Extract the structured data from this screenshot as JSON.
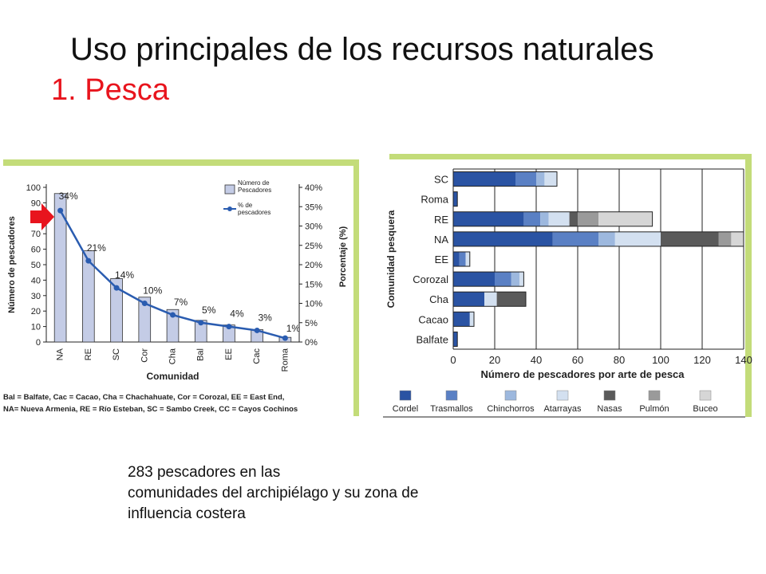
{
  "slide": {
    "title": "Uso principales de los recursos naturales",
    "subtitle": "1. Pesca",
    "caption": [
      "283 pescadores en las",
      "comunidades del archipiélago y su zona de",
      "influencia costera"
    ]
  },
  "colors": {
    "subtitle": "#e8141d",
    "frame": "#c3dc79",
    "arrow": "#e8141d"
  },
  "chart_data": [
    {
      "type": "bar",
      "categories": [
        "NA",
        "RE",
        "SC",
        "Cor",
        "Cha",
        "Bal",
        "EE",
        "Cac",
        "Roma"
      ],
      "series": [
        {
          "name": "Número de Pescadores",
          "values": [
            96,
            59,
            41,
            29,
            21,
            14,
            11,
            8,
            3
          ]
        },
        {
          "name": "% de pescadores",
          "values": [
            34,
            21,
            14,
            10,
            7,
            5,
            4,
            3,
            1
          ],
          "axis": "right",
          "style": "line"
        }
      ],
      "data_labels": [
        "34%",
        "21%",
        "14%",
        "10%",
        "7%",
        "5%",
        "4%",
        "3%",
        "1%"
      ],
      "xlabel": "Comunidad",
      "ylabel": "Número de pescadores",
      "ylabel_right": "Porcentaje (%)",
      "ylim": [
        0,
        100
      ],
      "yticks": [
        0,
        10,
        20,
        30,
        40,
        50,
        60,
        70,
        80,
        90,
        100
      ],
      "ylim_right": [
        0,
        40
      ],
      "yticks_right": [
        "0%",
        "5%",
        "10%",
        "15%",
        "20%",
        "25%",
        "30%",
        "35%",
        "40%"
      ],
      "legend_position": "top-right",
      "footnote": [
        "Bal = Balfate, Cac = Cacao, Cha = Chachahuate, Cor = Corozal, EE = East End,",
        "NA= Nueva Armenia, RE = Río Esteban, SC = Sambo Creek, CC = Cayos Cochinos"
      ]
    },
    {
      "type": "bar",
      "orientation": "horizontal",
      "stacked": true,
      "categories": [
        "SC",
        "Roma",
        "RE",
        "NA",
        "EE",
        "Corozal",
        "Cha",
        "Cacao",
        "Balfate"
      ],
      "series": [
        {
          "name": "Cordel",
          "color": "#2a53a3",
          "values": [
            30,
            2,
            34,
            48,
            3,
            20,
            15,
            8,
            2
          ]
        },
        {
          "name": "Trasmallos",
          "color": "#5a80c4",
          "values": [
            10,
            0,
            8,
            22,
            3,
            8,
            0,
            0,
            0
          ]
        },
        {
          "name": "Chinchorros",
          "color": "#9db8de",
          "values": [
            4,
            0,
            4,
            8,
            0,
            4,
            0,
            0,
            0
          ]
        },
        {
          "name": "Atarrayas",
          "color": "#d3e0f0",
          "values": [
            6,
            0,
            10,
            22,
            2,
            2,
            6,
            2,
            0
          ]
        },
        {
          "name": "Nasas",
          "color": "#5a5a5a",
          "values": [
            0,
            0,
            4,
            28,
            0,
            0,
            14,
            0,
            0
          ]
        },
        {
          "name": "Pulmón",
          "color": "#9a9a9a",
          "values": [
            0,
            0,
            10,
            6,
            0,
            0,
            0,
            0,
            0
          ]
        },
        {
          "name": "Buceo",
          "color": "#d6d6d6",
          "values": [
            0,
            0,
            26,
            6,
            0,
            0,
            0,
            0,
            0
          ]
        }
      ],
      "xlabel": "Número de pescadores por arte de pesca",
      "ylabel": "Comunidad pesquera",
      "xlim": [
        0,
        140
      ],
      "xticks": [
        0,
        20,
        40,
        60,
        80,
        100,
        120,
        140
      ],
      "grid": true,
      "legend_position": "bottom"
    }
  ]
}
